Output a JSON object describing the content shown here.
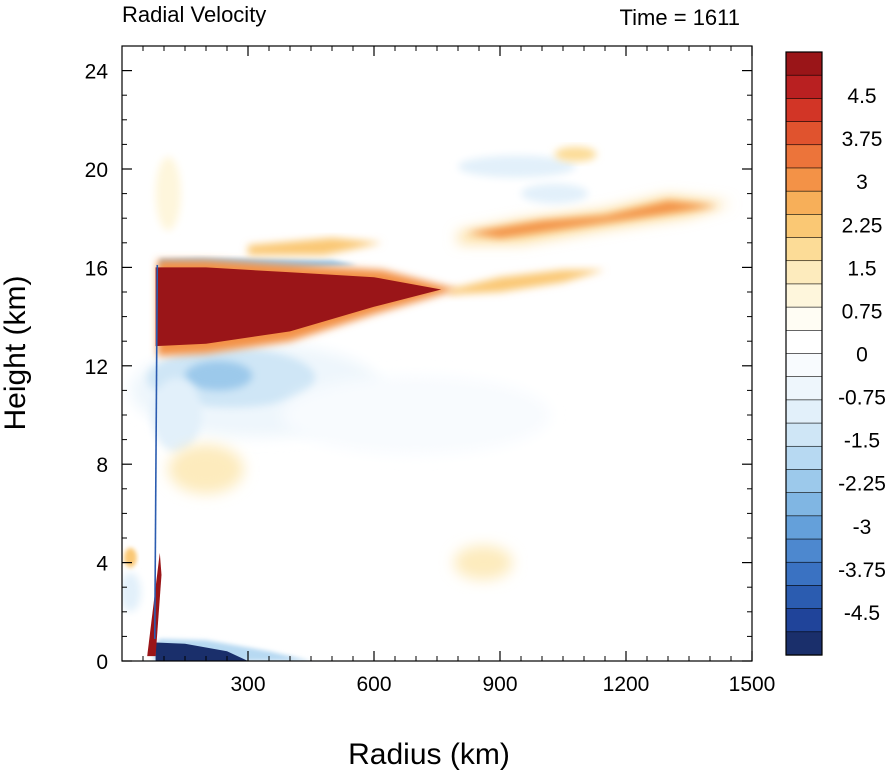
{
  "chart_data": {
    "type": "heatmap",
    "title": "Radial Velocity",
    "subtitle": "Time = 1611",
    "xlabel": "Radius (km)",
    "ylabel": "Height (km)",
    "xlim": [
      0,
      1500
    ],
    "ylim": [
      0,
      25
    ],
    "x_ticks": [
      300,
      600,
      900,
      1200,
      1500
    ],
    "y_ticks": [
      0,
      4,
      8,
      12,
      16,
      20,
      24
    ],
    "x_tick_labels": [
      "300",
      "600",
      "900",
      "1200",
      "1500"
    ],
    "y_tick_labels": [
      "0",
      "4",
      "8",
      "12",
      "16",
      "20",
      "24"
    ],
    "colorbar": {
      "min": -5.25,
      "max": 5.25,
      "step": 0.375,
      "tick_values": [
        4.5,
        3.75,
        3,
        2.25,
        1.5,
        0.75,
        0,
        -0.75,
        -1.5,
        -2.25,
        -3,
        -3.75,
        -4.5
      ],
      "tick_labels": [
        "4.5",
        "3.75",
        "3",
        "2.25",
        "1.5",
        "0.75",
        "0",
        "-0.75",
        "-1.5",
        "-2.25",
        "-3",
        "-3.75",
        "-4.5"
      ],
      "colors": [
        "#1a2f6b",
        "#20449a",
        "#2b5cb0",
        "#3a72c2",
        "#4d88cf",
        "#64a0da",
        "#80b6e3",
        "#9cc9eb",
        "#b7d9f2",
        "#cfe6f6",
        "#e2f0fa",
        "#eef6fc",
        "#f8fbfe",
        "#ffffff",
        "#fffdf4",
        "#fef6dc",
        "#fdebbd",
        "#fcdc97",
        "#fac874",
        "#f7af59",
        "#f39247",
        "#ec743a",
        "#e0532e",
        "#d23526",
        "#b92021",
        "#9a1518"
      ]
    },
    "features": [
      {
        "name": "upper-level outflow",
        "r": [
          80,
          760
        ],
        "z": [
          12.8,
          16.0
        ],
        "value": 5.25
      },
      {
        "name": "outflow layer above",
        "r": [
          200,
          500
        ],
        "z": [
          16.2,
          17.0
        ],
        "value": -2.5
      },
      {
        "name": "mid-level inflow",
        "r": [
          80,
          550
        ],
        "z": [
          9.0,
          12.6
        ],
        "value": -1.8
      },
      {
        "name": "boundary-layer inflow",
        "r": [
          80,
          450
        ],
        "z": [
          0,
          0.9
        ],
        "value": -5.0
      },
      {
        "name": "eyewall near-surface outflow",
        "r": [
          60,
          90
        ],
        "z": [
          0.5,
          4.5
        ],
        "value": 5.0
      },
      {
        "name": "outer outflow band",
        "r": [
          800,
          1450
        ],
        "z": [
          16.8,
          19.0
        ],
        "value": 2.2
      },
      {
        "name": "outer outflow band",
        "r": [
          800,
          1150
        ],
        "z": [
          14.8,
          16.0
        ],
        "value": 1.8
      },
      {
        "name": "outer inflow band",
        "r": [
          820,
          1100
        ],
        "z": [
          19.6,
          20.6
        ],
        "value": -1.3
      }
    ]
  }
}
